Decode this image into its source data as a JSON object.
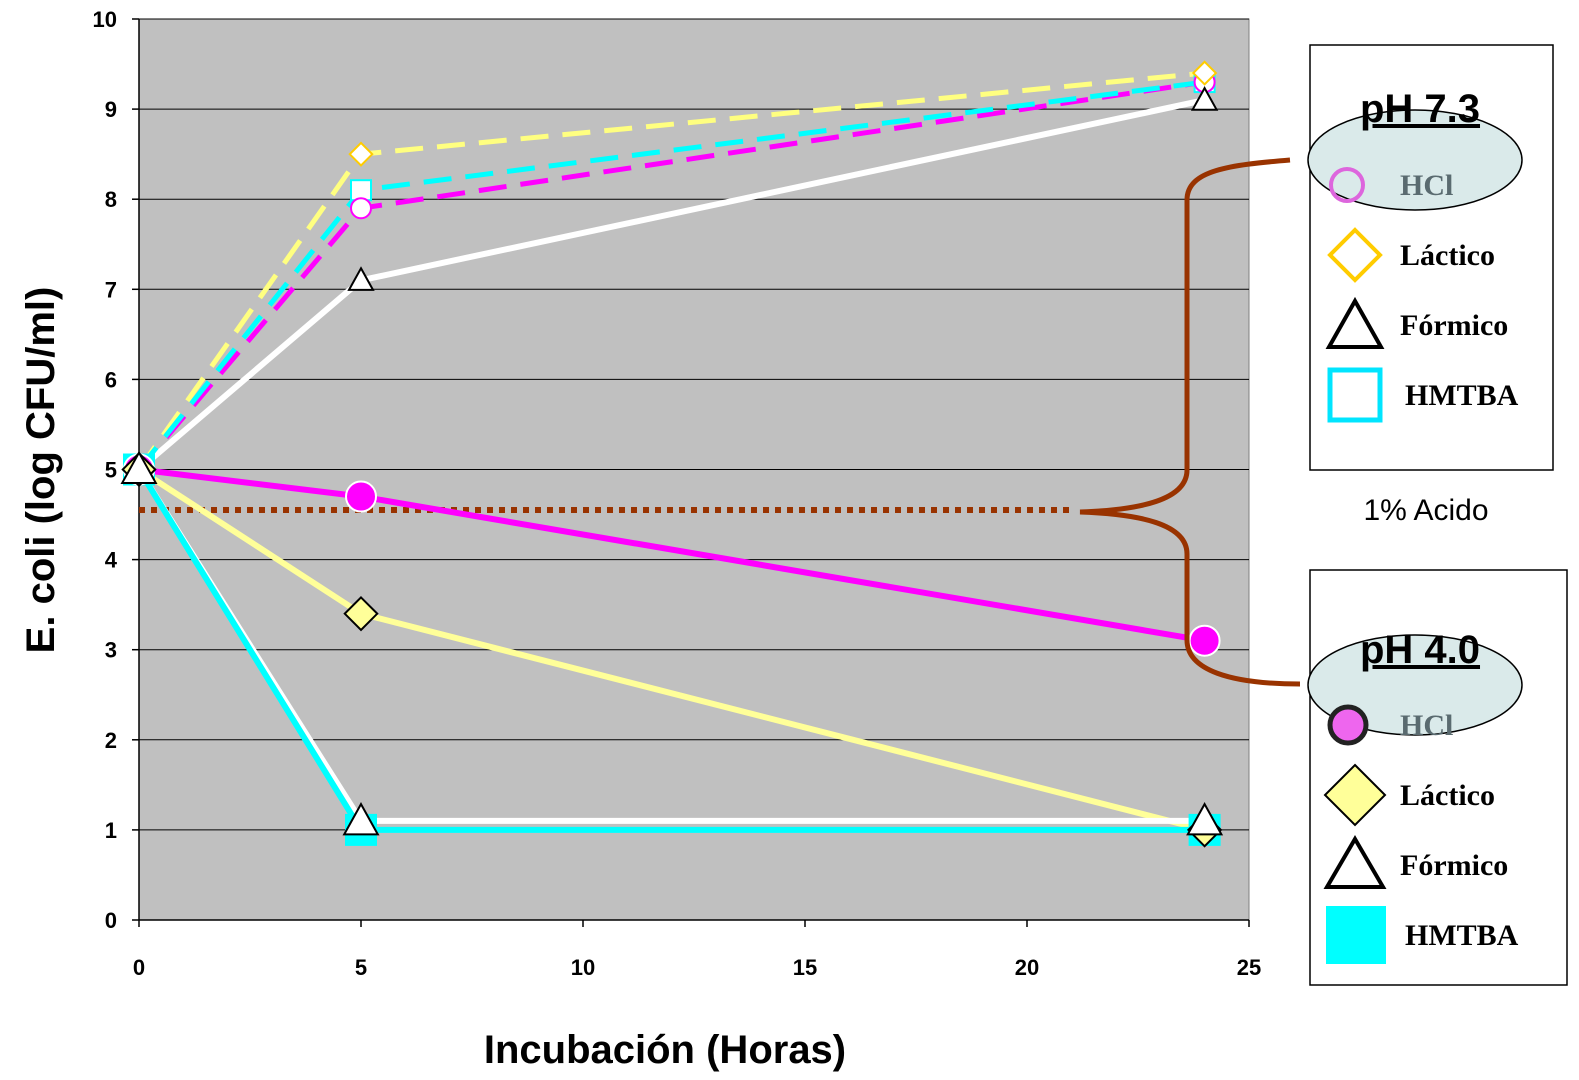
{
  "chart_data": {
    "type": "line",
    "xlabel": "Incubación (Horas)",
    "ylabel": "E. coli (log CFU/ml)",
    "xlim": [
      0,
      25
    ],
    "ylim": [
      0,
      10
    ],
    "x_ticks": [
      0,
      5,
      10,
      15,
      20,
      25
    ],
    "y_ticks": [
      0,
      1,
      2,
      3,
      4,
      5,
      6,
      7,
      8,
      9,
      10
    ],
    "grid": "horizontal",
    "plot_background": "#c0c0c0",
    "x": [
      0,
      5,
      24
    ],
    "series": [
      {
        "group": "pH 7.3",
        "name": "HCl",
        "values": [
          5.0,
          7.9,
          9.3
        ],
        "color": "#ff00ff",
        "marker": "circle",
        "marker_fill": "#ffffff",
        "dash": true
      },
      {
        "group": "pH 7.3",
        "name": "Láctico",
        "values": [
          5.0,
          8.5,
          9.4
        ],
        "color": "#ffff80",
        "marker": "diamond",
        "marker_fill": "#ffffff",
        "marker_stroke": "#ffcc00",
        "dash": true
      },
      {
        "group": "pH 7.3",
        "name": "Fórmico",
        "values": [
          5.0,
          7.1,
          9.1
        ],
        "color": "#ffffff",
        "marker": "triangle",
        "marker_fill": "#ffffff",
        "marker_stroke": "#000000",
        "dash": false
      },
      {
        "group": "pH 7.3",
        "name": "HMTBA",
        "values": [
          5.0,
          8.1,
          9.3
        ],
        "color": "#00ffff",
        "marker": "square",
        "marker_fill": "#ffffff",
        "dash": true
      },
      {
        "group": "pH 4.0",
        "name": "HCl",
        "values": [
          5.0,
          4.7,
          3.1
        ],
        "color": "#ff00ff",
        "marker": "circle",
        "marker_fill": "#ff00ff",
        "dash": false
      },
      {
        "group": "pH 4.0",
        "name": "Láctico",
        "values": [
          5.0,
          3.4,
          1.0
        ],
        "color": "#ffff99",
        "marker": "diamond",
        "marker_fill": "#ffff99",
        "marker_stroke": "#000000",
        "dash": false
      },
      {
        "group": "pH 4.0",
        "name": "Fórmico",
        "values": [
          5.0,
          1.1,
          1.1
        ],
        "color": "#ffffff",
        "marker": "triangle",
        "marker_fill": "#ffffff",
        "marker_stroke": "#000000",
        "dash": false
      },
      {
        "group": "pH 4.0",
        "name": "HMTBA",
        "values": [
          5.0,
          1.0,
          1.0
        ],
        "color": "#00ffff",
        "marker": "square",
        "marker_fill": "#00ffff",
        "dash": false
      }
    ],
    "reference_line": {
      "y": 4.55,
      "color": "#993300",
      "style": "dotted"
    },
    "annotation": "1% Acido",
    "legends": [
      {
        "title": "pH 7.3",
        "entries": [
          "HCl",
          "Láctico",
          "Fórmico",
          "HMTBA"
        ]
      },
      {
        "title": "pH 4.0",
        "entries": [
          "HCl",
          "Láctico",
          "Fórmico",
          "HMTBA"
        ]
      }
    ]
  }
}
